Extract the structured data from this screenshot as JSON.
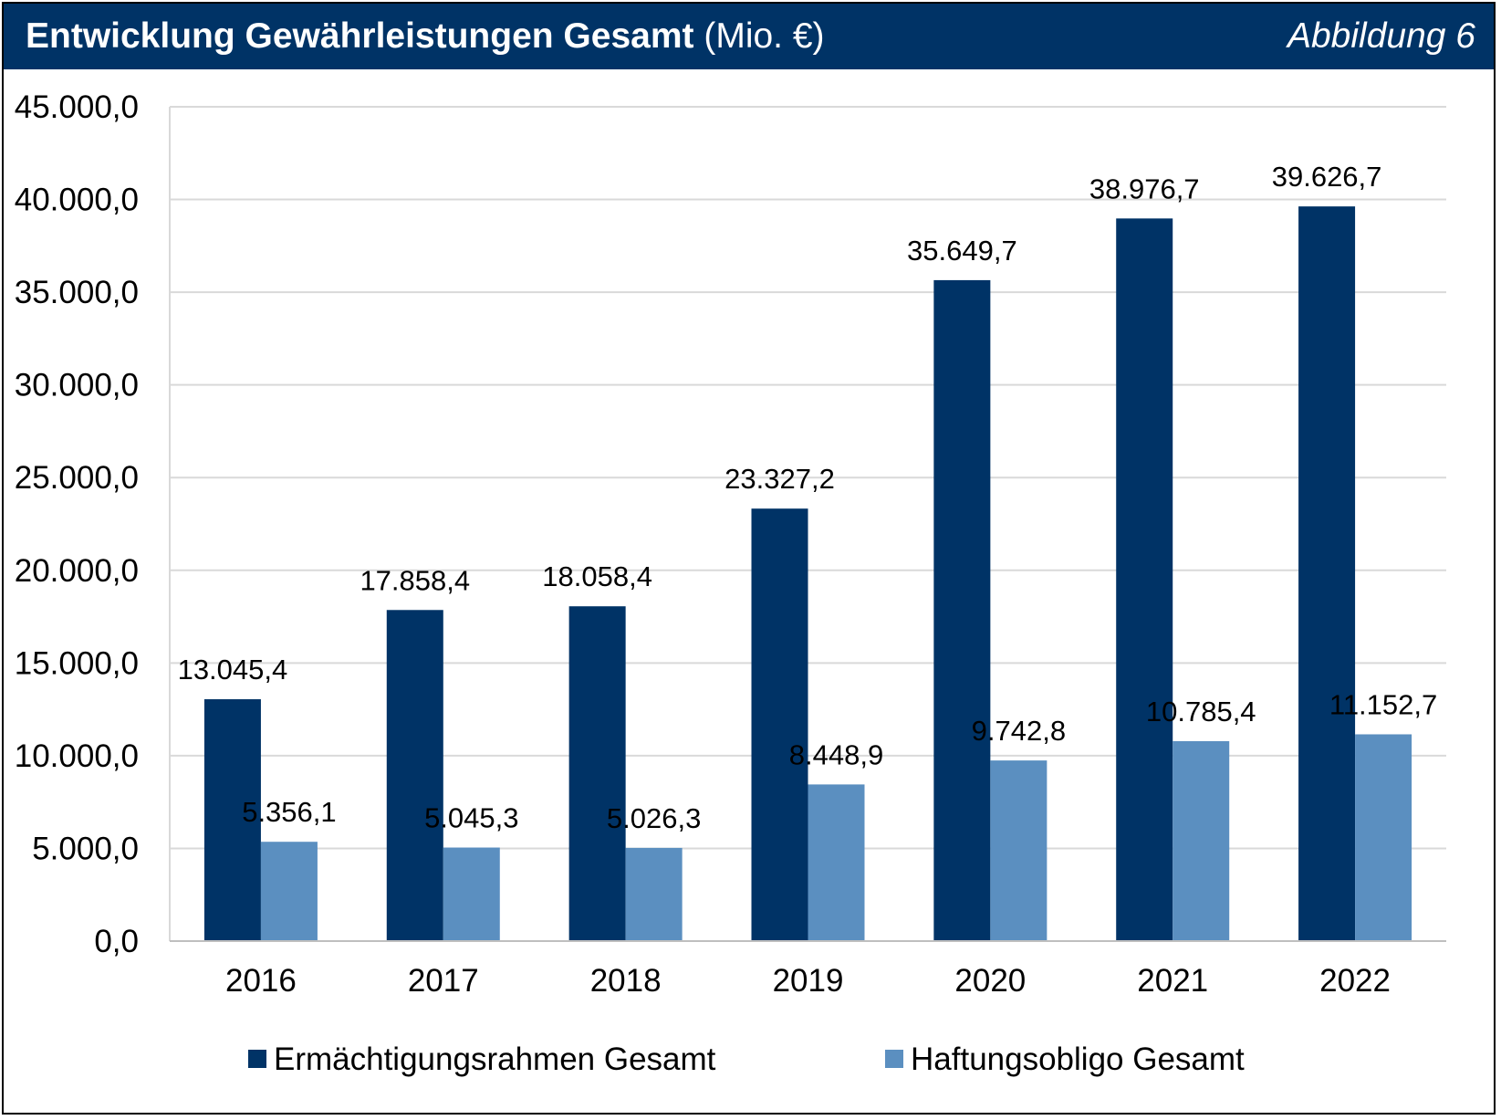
{
  "header": {
    "title_bold": "Entwicklung Gewährleistungen Gesamt",
    "title_unit": "(Mio. €)",
    "figure_label": "Abbildung 6"
  },
  "colors": {
    "header_bg": "#003366",
    "series_dark": "#003366",
    "series_light": "#5B8FC0",
    "gridline": "#D9D9D9"
  },
  "chart_data": {
    "type": "bar",
    "categories": [
      "2016",
      "2017",
      "2018",
      "2019",
      "2020",
      "2021",
      "2022"
    ],
    "series": [
      {
        "name": "Ermächtigungsrahmen Gesamt",
        "values": [
          13045.4,
          17858.4,
          18058.4,
          23327.2,
          35649.7,
          38976.7,
          39626.7
        ],
        "labels": [
          "13.045,4",
          "17.858,4",
          "18.058,4",
          "23.327,2",
          "35.649,7",
          "38.976,7",
          "39.626,7"
        ]
      },
      {
        "name": "Haftungsobligo Gesamt",
        "values": [
          5356.1,
          5045.3,
          5026.3,
          8448.9,
          9742.8,
          10785.4,
          11152.7
        ],
        "labels": [
          "5.356,1",
          "5.045,3",
          "5.026,3",
          "8.448,9",
          "9.742,8",
          "10.785,4",
          "11.152,7"
        ]
      }
    ],
    "ylim": [
      0,
      45000
    ],
    "yticks": [
      0,
      5000,
      10000,
      15000,
      20000,
      25000,
      30000,
      35000,
      40000,
      45000
    ],
    "ytick_labels": [
      "0,0",
      "5.000,0",
      "10.000,0",
      "15.000,0",
      "20.000,0",
      "25.000,0",
      "30.000,0",
      "35.000,0",
      "40.000,0",
      "45.000,0"
    ],
    "grid": true,
    "legend_position": "bottom"
  }
}
